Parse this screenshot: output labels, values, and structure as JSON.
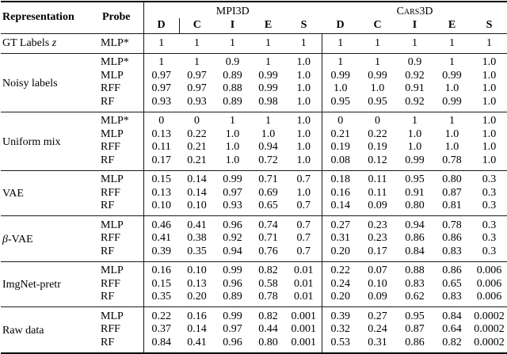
{
  "table": {
    "headers": {
      "representation": "Representation",
      "probe": "Probe",
      "group1": "MPI3D",
      "group2": "Cars3D",
      "metrics": [
        "D",
        "C",
        "I",
        "E",
        "S",
        "D",
        "C",
        "I",
        "E",
        "S"
      ]
    },
    "sections": [
      {
        "pre": "GT Labels ",
        "math": "z",
        "post": "",
        "rows": [
          {
            "probe": "MLP*",
            "values": [
              "1",
              "1",
              "1",
              "1",
              "1",
              "1",
              "1",
              "1",
              "1",
              "1"
            ]
          }
        ]
      },
      {
        "pre": "Noisy labels",
        "math": "",
        "post": "",
        "rows": [
          {
            "probe": "MLP*",
            "values": [
              "1",
              "1",
              "0.9",
              "1",
              "1.0",
              "1",
              "1",
              "0.9",
              "1",
              "1.0"
            ]
          },
          {
            "probe": "MLP",
            "values": [
              "0.97",
              "0.97",
              "0.89",
              "0.99",
              "1.0",
              "0.99",
              "0.99",
              "0.92",
              "0.99",
              "1.0"
            ]
          },
          {
            "probe": "RFF",
            "values": [
              "0.97",
              "0.97",
              "0.88",
              "0.99",
              "1.0",
              "1.0",
              "1.0",
              "0.91",
              "1.0",
              "1.0"
            ]
          },
          {
            "probe": "RF",
            "values": [
              "0.93",
              "0.93",
              "0.89",
              "0.98",
              "1.0",
              "0.95",
              "0.95",
              "0.92",
              "0.99",
              "1.0"
            ]
          }
        ]
      },
      {
        "pre": "Uniform mix",
        "math": "",
        "post": "",
        "rows": [
          {
            "probe": "MLP*",
            "values": [
              "0",
              "0",
              "1",
              "1",
              "1.0",
              "0",
              "0",
              "1",
              "1",
              "1.0"
            ]
          },
          {
            "probe": "MLP",
            "values": [
              "0.13",
              "0.22",
              "1.0",
              "1.0",
              "1.0",
              "0.21",
              "0.22",
              "1.0",
              "1.0",
              "1.0"
            ]
          },
          {
            "probe": "RFF",
            "values": [
              "0.11",
              "0.21",
              "1.0",
              "0.94",
              "1.0",
              "0.19",
              "0.19",
              "1.0",
              "1.0",
              "1.0"
            ]
          },
          {
            "probe": "RF",
            "values": [
              "0.17",
              "0.21",
              "1.0",
              "0.72",
              "1.0",
              "0.08",
              "0.12",
              "0.99",
              "0.78",
              "1.0"
            ]
          }
        ]
      },
      {
        "pre": "VAE",
        "math": "",
        "post": "",
        "rows": [
          {
            "probe": "MLP",
            "values": [
              "0.15",
              "0.14",
              "0.99",
              "0.71",
              "0.7",
              "0.18",
              "0.11",
              "0.95",
              "0.80",
              "0.3"
            ]
          },
          {
            "probe": "RFF",
            "values": [
              "0.13",
              "0.14",
              "0.97",
              "0.69",
              "1.0",
              "0.16",
              "0.11",
              "0.91",
              "0.87",
              "0.3"
            ]
          },
          {
            "probe": "RF",
            "values": [
              "0.10",
              "0.10",
              "0.93",
              "0.65",
              "0.7",
              "0.14",
              "0.09",
              "0.80",
              "0.81",
              "0.3"
            ]
          }
        ]
      },
      {
        "pre": "",
        "math": "β",
        "post": "-VAE",
        "rows": [
          {
            "probe": "MLP",
            "values": [
              "0.46",
              "0.41",
              "0.96",
              "0.74",
              "0.7",
              "0.27",
              "0.23",
              "0.94",
              "0.78",
              "0.3"
            ]
          },
          {
            "probe": "RFF",
            "values": [
              "0.41",
              "0.38",
              "0.92",
              "0.71",
              "0.7",
              "0.31",
              "0.23",
              "0.86",
              "0.86",
              "0.3"
            ]
          },
          {
            "probe": "RF",
            "values": [
              "0.39",
              "0.35",
              "0.94",
              "0.76",
              "0.7",
              "0.20",
              "0.17",
              "0.84",
              "0.83",
              "0.3"
            ]
          }
        ]
      },
      {
        "pre": "ImgNet-pretr",
        "math": "",
        "post": "",
        "rows": [
          {
            "probe": "MLP",
            "values": [
              "0.16",
              "0.10",
              "0.99",
              "0.82",
              "0.01",
              "0.22",
              "0.07",
              "0.88",
              "0.86",
              "0.006"
            ]
          },
          {
            "probe": "RFF",
            "values": [
              "0.15",
              "0.13",
              "0.96",
              "0.58",
              "0.01",
              "0.24",
              "0.10",
              "0.83",
              "0.65",
              "0.006"
            ]
          },
          {
            "probe": "RF",
            "values": [
              "0.35",
              "0.20",
              "0.89",
              "0.78",
              "0.01",
              "0.20",
              "0.09",
              "0.62",
              "0.83",
              "0.006"
            ]
          }
        ]
      },
      {
        "pre": "Raw data",
        "math": "",
        "post": "",
        "rows": [
          {
            "probe": "MLP",
            "values": [
              "0.22",
              "0.16",
              "0.99",
              "0.82",
              "0.001",
              "0.39",
              "0.27",
              "0.95",
              "0.84",
              "0.0002"
            ]
          },
          {
            "probe": "RFF",
            "values": [
              "0.37",
              "0.14",
              "0.97",
              "0.44",
              "0.001",
              "0.32",
              "0.24",
              "0.87",
              "0.64",
              "0.0002"
            ]
          },
          {
            "probe": "RF",
            "values": [
              "0.84",
              "0.41",
              "0.96",
              "0.80",
              "0.001",
              "0.53",
              "0.31",
              "0.86",
              "0.82",
              "0.0002"
            ]
          }
        ]
      }
    ]
  }
}
